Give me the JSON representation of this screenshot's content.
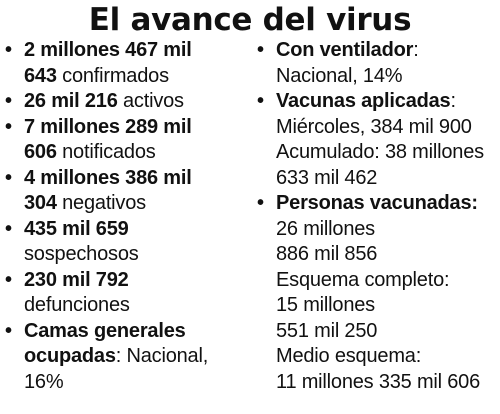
{
  "title": "El avance del virus",
  "bullet_glyph": "•",
  "left": {
    "confirmados": {
      "line1_bold": "2 millones 467 mil",
      "line2_bold": "643",
      "line2_text": " confirmados"
    },
    "activos": {
      "bold": "26 mil 216",
      "text": " activos"
    },
    "notificados": {
      "line1_bold": "7 millones 289 mil",
      "line2_bold": "606",
      "line2_text": " notificados"
    },
    "negativos": {
      "line1_bold": "4 millones 386 mil",
      "line2_bold": "304",
      "line2_text": " negativos"
    },
    "sospechosos": {
      "line1_bold": "435 mil 659",
      "line2_text": "sospechosos"
    },
    "defunciones": {
      "line1_bold": "230 mil 792",
      "line2_text": "defunciones"
    },
    "camas": {
      "line1_bold": "Camas generales",
      "line2_bold": "ocupadas",
      "line2_text": ": Nacional,",
      "line3_text": "16%"
    }
  },
  "right": {
    "ventilador": {
      "line1_bold": "Con ventilador",
      "line1_text": ":",
      "line2_text": "Nacional, 14%"
    },
    "vacunas": {
      "line1_bold": "Vacunas aplicadas",
      "line1_text": ":",
      "line2_text": "Miércoles, 384 mil 900",
      "line3_text": "Acumulado: 38 millones",
      "line4_text": "633 mil 462"
    },
    "personas": {
      "line1_bold": "Personas vacunadas:",
      "line2_text": "26 millones",
      "line3_text": "886 mil 856",
      "line4_text": "Esquema completo:",
      "line5_text": "15 millones",
      "line6_text": "551 mil 250",
      "line7_text": "Medio esquema:",
      "line8_text": "11 millones 335 mil 606"
    }
  }
}
